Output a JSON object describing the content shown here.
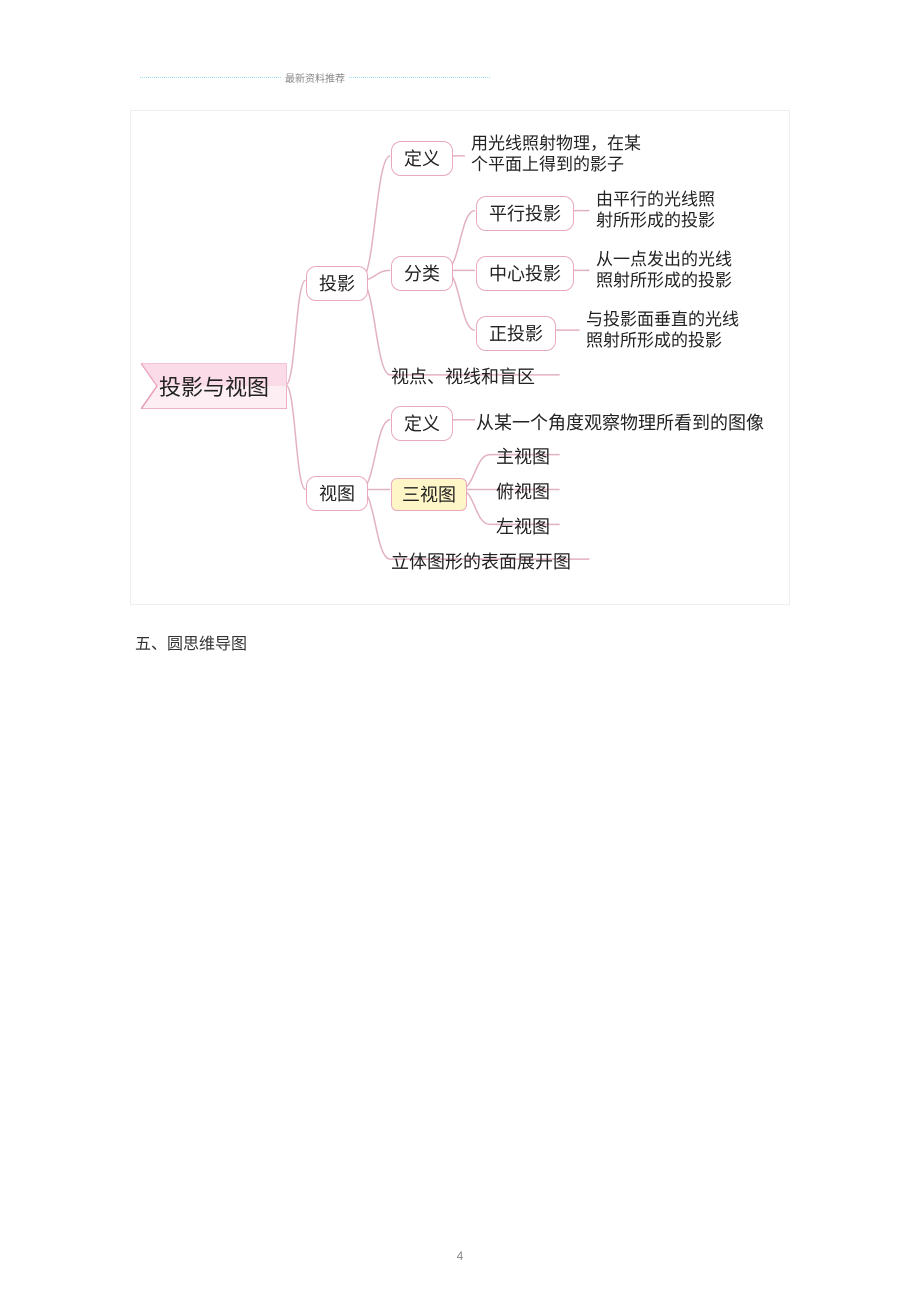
{
  "header": {
    "text": "最新资料推荐"
  },
  "caption": "五、圆思维导图",
  "page_number": "4",
  "colors": {
    "node_border": "#e8a9bd",
    "root_fill_light": "#fdeef3",
    "root_fill_mid": "#f9cfdf",
    "root_border": "#e99cb9",
    "connector": "#e2b1c3",
    "highlight_fill": "#fff6c8",
    "header_dot": "#9adcf0",
    "text": "#222222"
  },
  "mindmap": {
    "root": "投影与视图",
    "branch1": {
      "label": "投影",
      "child1": {
        "label": "定义",
        "desc": "用光线照射物理，在某\n个平面上得到的影子"
      },
      "child2": {
        "label": "分类",
        "sub1": {
          "label": "平行投影",
          "desc": "由平行的光线照\n射所形成的投影"
        },
        "sub2": {
          "label": "中心投影",
          "desc": "从一点发出的光线\n照射所形成的投影"
        },
        "sub3": {
          "label": "正投影",
          "desc": "与投影面垂直的光线\n照射所形成的投影"
        }
      },
      "child3": {
        "label": "视点、视线和盲区"
      }
    },
    "branch2": {
      "label": "视图",
      "child1": {
        "label": "定义",
        "desc": "从某一个角度观察物理所看到的图像"
      },
      "child2": {
        "label": "三视图",
        "sub1": "主视图",
        "sub2": "俯视图",
        "sub3": "左视图"
      },
      "child3": {
        "label": "立体图形的表面展开图"
      }
    }
  }
}
